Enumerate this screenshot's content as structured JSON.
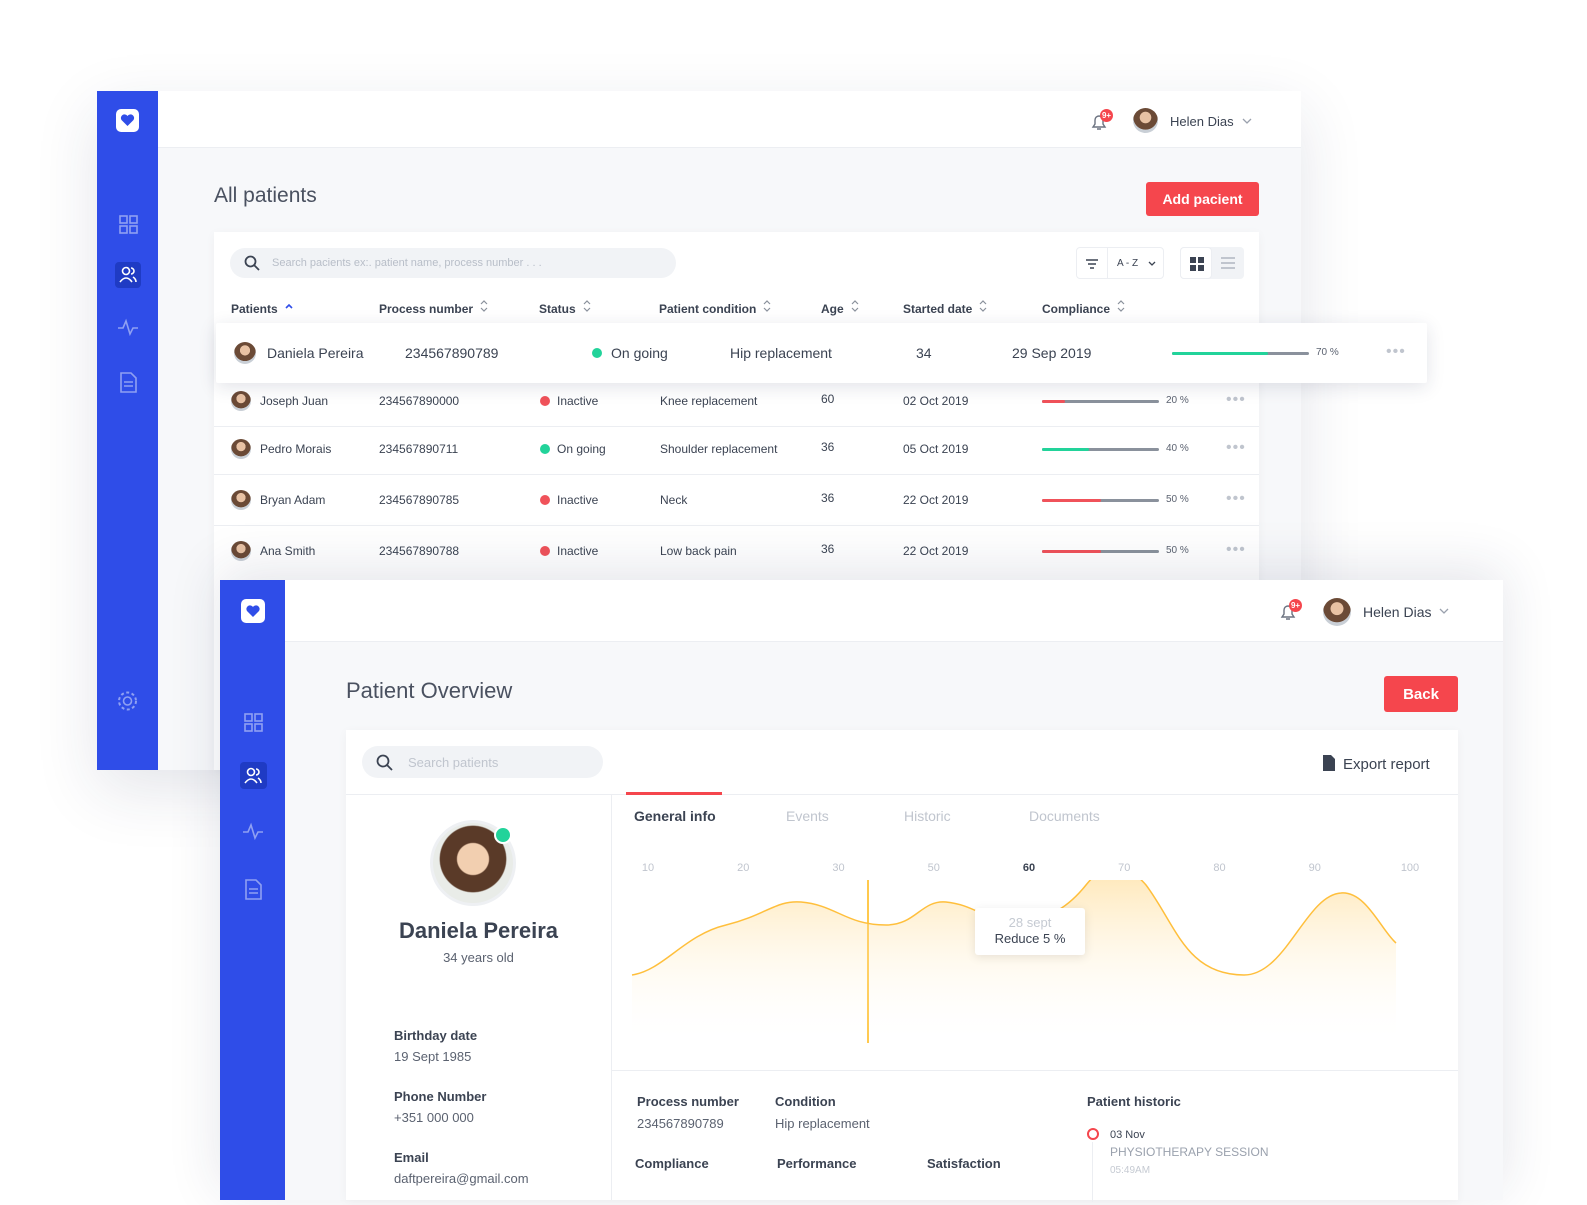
{
  "patients_window": {
    "header": {
      "badge": "9+",
      "user": "Helen Dias"
    },
    "title": "All patients",
    "add_button": "Add pacient",
    "search_placeholder": "Search pacients ex:. patient name, process number . . .",
    "sort": "A - Z",
    "table": {
      "columns": [
        "Patients",
        "Process number",
        "Status",
        "Patient condition",
        "Age",
        "Started date",
        "Compliance"
      ],
      "rows": [
        {
          "name": "Daniela Pereira",
          "process": "234567890789",
          "status": "On going",
          "status_color": "#22d39a",
          "condition": "Hip replacement",
          "age": 34,
          "date": "29 Sep 2019",
          "compliance": {
            "value": 70,
            "label": "70 %"
          }
        },
        {
          "name": "Joseph Juan",
          "process": "234567890000",
          "status": "Inactive",
          "status_color": "#f0525a",
          "condition": "Knee replacement",
          "age": 60,
          "date": "02 Oct 2019",
          "compliance": {
            "value": 20,
            "label": "20 %"
          }
        },
        {
          "name": "Pedro Morais",
          "process": "234567890711",
          "status": "On going",
          "status_color": "#22d39a",
          "condition": "Shoulder replacement",
          "age": 36,
          "date": "05 Oct 2019",
          "compliance": {
            "value": 40,
            "label": "40 %"
          }
        },
        {
          "name": "Bryan Adam",
          "process": "234567890785",
          "status": "Inactive",
          "status_color": "#f0525a",
          "condition": "Neck",
          "age": 36,
          "date": "22 Oct 2019",
          "compliance": {
            "value": 50,
            "label": "50 %"
          }
        },
        {
          "name": "Ana Smith",
          "process": "234567890788",
          "status": "Inactive",
          "status_color": "#f0525a",
          "condition": "Low back pain",
          "age": 36,
          "date": "22 Oct 2019",
          "compliance": {
            "value": 50,
            "label": "50 %"
          }
        }
      ]
    }
  },
  "overview_window": {
    "header": {
      "badge": "9+",
      "user": "Helen Dias"
    },
    "title": "Patient Overview",
    "back_button": "Back",
    "search_placeholder": "Search patients",
    "export": "Export report",
    "profile": {
      "name": "Daniela Pereira",
      "age": "34 years old",
      "fields": [
        {
          "label": "Birthday date",
          "value": "19 Sept 1985"
        },
        {
          "label": "Phone Number",
          "value": "+351 000 000"
        },
        {
          "label": "Email",
          "value": "daftpereira@gmail.com"
        }
      ]
    },
    "tabs": [
      "General info",
      "Events",
      "Historic",
      "Documents"
    ],
    "chart": {
      "xticks": [
        10,
        20,
        30,
        50,
        60,
        70,
        80,
        90,
        100
      ],
      "tooltip": {
        "date": "28 sept",
        "text": "Reduce 5 %"
      }
    },
    "details": {
      "process_label": "Process number",
      "process": "234567890789",
      "condition_label": "Condition",
      "condition": "Hip replacement",
      "metrics": [
        "Compliance",
        "Performance",
        "Satisfaction"
      ],
      "historic_title": "Patient historic",
      "historic": {
        "date": "03 Nov",
        "event": "PHYSIOTHERAPY SESSION",
        "time": "05:49AM"
      }
    }
  }
}
